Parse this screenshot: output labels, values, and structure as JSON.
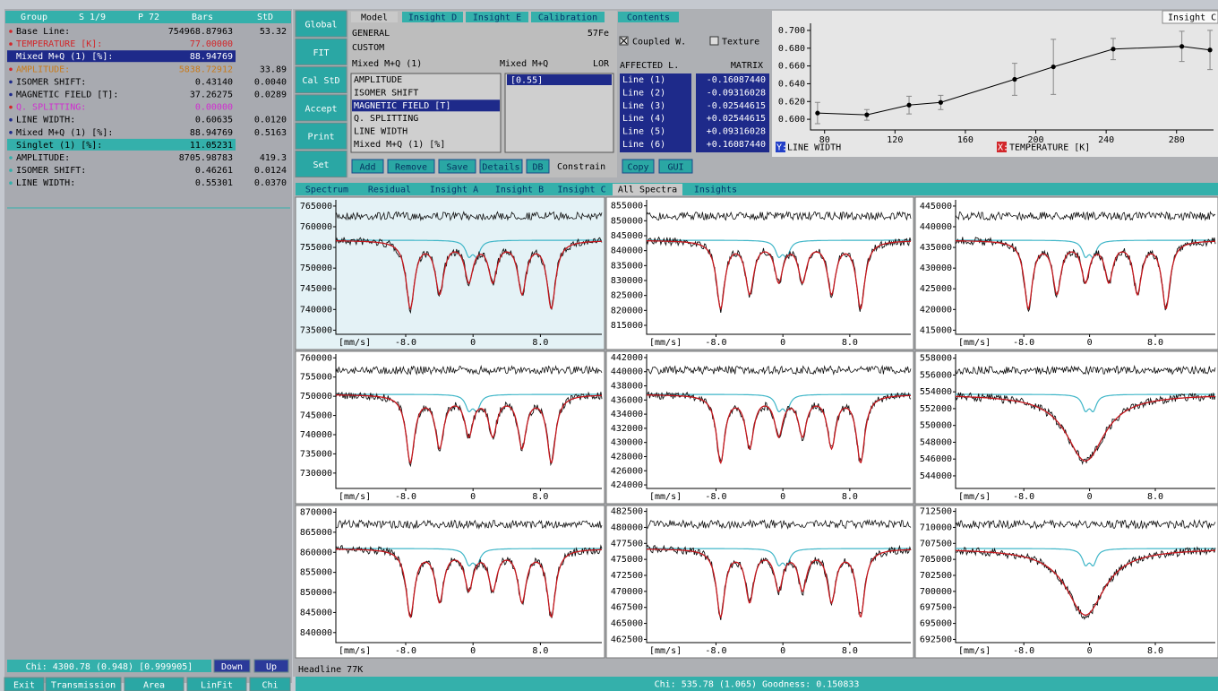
{
  "left_panel": {
    "headers": [
      "Group",
      "S 1/9",
      "P 72",
      "Bars",
      "StD"
    ],
    "rows": [
      {
        "label": "Base Line:",
        "value": "754968.87963",
        "std": "53.32"
      },
      {
        "label": "TEMPERATURE [K]:",
        "value": "77.00000"
      },
      {
        "label": "Mixed M+Q (1) [%]:",
        "value": "88.94769"
      },
      {
        "label": "AMPLITUDE:",
        "value": "5838.72912",
        "std": "33.89"
      },
      {
        "label": "ISOMER SHIFT:",
        "value": "0.43140",
        "std": "0.0040"
      },
      {
        "label": "MAGNETIC FIELD [T]:",
        "value": "37.26275",
        "std": "0.0289"
      },
      {
        "label": "Q. SPLITTING:",
        "value": "0.00000"
      },
      {
        "label": "LINE WIDTH:",
        "value": "0.60635",
        "std": "0.0120"
      },
      {
        "label": "Mixed M+Q (1) [%]:",
        "value": "88.94769",
        "std": "0.5163"
      },
      {
        "label": "Singlet (1) [%]:",
        "value": "11.05231"
      },
      {
        "label": "AMPLITUDE:",
        "value": "8705.98783",
        "std": "419.3"
      },
      {
        "label": "ISOMER SHIFT:",
        "value": "0.46261",
        "std": "0.0124"
      },
      {
        "label": "LINE WIDTH:",
        "value": "0.55301",
        "std": "0.0370"
      }
    ],
    "chi": "Chi: 4300.78 (0.948) [0.999905]",
    "chi_buttons": [
      "Down",
      "Up"
    ],
    "buttons": [
      "Exit",
      "Transmission",
      "Area",
      "LinFit",
      "Chi"
    ]
  },
  "side_buttons": [
    "Global",
    "FIT",
    "Cal StD",
    "Accept",
    "Print",
    "Set"
  ],
  "model_panel": {
    "tabs": [
      "Model",
      "Insight D",
      "Insight E",
      "Calibration",
      "Contents"
    ],
    "general": "GENERAL",
    "isotope": "57Fe",
    "custom": "CUSTOM",
    "model_name": "Mixed M+Q (1)",
    "model_type": "Mixed M+Q",
    "line_shape": "LOR",
    "parameters": [
      "AMPLITUDE",
      "ISOMER SHIFT",
      "MAGNETIC FIELD [T]",
      "Q. SPLITTING",
      "LINE WIDTH",
      "Mixed M+Q (1) [%]"
    ],
    "parameter_values": [
      "[0.55]"
    ],
    "buttons": [
      "Add",
      "Remove",
      "Save",
      "Details",
      "DB"
    ],
    "constrain": "Constrain"
  },
  "lines_panel": {
    "coupled": "Coupled W.",
    "texture": "Texture",
    "affected": "AFFECTED L.",
    "matrix": "MATRIX",
    "lines": [
      {
        "name": "Line (1)",
        "value": "-0.16087440"
      },
      {
        "name": "Line (2)",
        "value": "-0.09316028"
      },
      {
        "name": "Line (3)",
        "value": "-0.02544615"
      },
      {
        "name": "Line (4)",
        "value": "+0.02544615"
      },
      {
        "name": "Line (5)",
        "value": "+0.09316028"
      },
      {
        "name": "Line (6)",
        "value": "+0.16087440"
      }
    ],
    "buttons": [
      "Copy",
      "GUI"
    ]
  },
  "insight_chart": {
    "type": "line",
    "tab": "Insight C",
    "y_axis_tag": "Y:",
    "y_label": "LINE WIDTH",
    "x_axis_tag": "X:",
    "x_label": "TEMPERATURE [K]",
    "x": [
      76,
      104,
      128,
      146,
      188,
      210,
      244,
      283,
      299
    ],
    "values": [
      0.607,
      0.605,
      0.616,
      0.619,
      0.645,
      0.659,
      0.679,
      0.682,
      0.678
    ],
    "errors": [
      0.012,
      0.006,
      0.01,
      0.008,
      0.018,
      0.031,
      0.012,
      0.017,
      0.022
    ],
    "color": "#000000",
    "xlim": [
      72,
      301
    ],
    "ylim": [
      0.588,
      0.708
    ],
    "xticks": [
      80,
      120,
      160,
      200,
      240,
      280
    ],
    "yticks": [
      {
        "value": 0.6,
        "label": "0.600"
      },
      {
        "value": 0.62,
        "label": "0.620"
      },
      {
        "value": 0.64,
        "label": "0.640"
      },
      {
        "value": 0.66,
        "label": "0.660"
      },
      {
        "value": 0.68,
        "label": "0.680"
      },
      {
        "value": 0.7,
        "label": "0.700"
      }
    ]
  },
  "spectra_tabs": [
    "Spectrum",
    "Residual",
    "Insight A",
    "Insight B",
    "Insight C",
    "All Spectra",
    "Insights"
  ],
  "spectra": [
    {
      "x_unit": "[mm/s]",
      "xlim": [
        -16.3,
        15.3
      ],
      "xticks": [
        {
          "value": -8,
          "label": "-8.0"
        },
        0,
        {
          "value": 8,
          "label": "8.0"
        }
      ],
      "ylim": [
        734000,
        766500
      ],
      "yticks": [
        735000,
        740000,
        745000,
        750000,
        755000,
        760000,
        765000
      ]
    },
    {
      "x_unit": "[mm/s]",
      "xlim": [
        -16.3,
        15.3
      ],
      "xticks": [
        {
          "value": -8,
          "label": "-8.0"
        },
        0,
        {
          "value": 8,
          "label": "8.0"
        }
      ],
      "ylim": [
        812000,
        857000
      ],
      "yticks": [
        815000,
        820000,
        825000,
        830000,
        835000,
        840000,
        845000,
        850000,
        855000
      ]
    },
    {
      "x_unit": "[mm/s]",
      "xlim": [
        -16.3,
        15.3
      ],
      "xticks": [
        {
          "value": -8,
          "label": "-8.0"
        },
        0,
        {
          "value": 8,
          "label": "8.0"
        }
      ],
      "ylim": [
        414000,
        446500
      ],
      "yticks": [
        415000,
        420000,
        425000,
        430000,
        435000,
        440000,
        445000
      ]
    },
    {
      "x_unit": "[mm/s]",
      "xlim": [
        -16.3,
        15.3
      ],
      "xticks": [
        {
          "value": -8,
          "label": "-8.0"
        },
        0,
        {
          "value": 8,
          "label": "8.0"
        }
      ],
      "ylim": [
        726000,
        761000
      ],
      "yticks": [
        730000,
        735000,
        740000,
        745000,
        750000,
        755000,
        760000
      ]
    },
    {
      "x_unit": "[mm/s]",
      "xlim": [
        -16.3,
        15.3
      ],
      "xticks": [
        {
          "value": -8,
          "label": "-8.0"
        },
        0,
        {
          "value": 8,
          "label": "8.0"
        }
      ],
      "ylim": [
        423500,
        442500
      ],
      "yticks": [
        424000,
        426000,
        428000,
        430000,
        432000,
        434000,
        436000,
        438000,
        440000,
        442000
      ]
    },
    {
      "x_unit": "[mm/s]",
      "xlim": [
        -16.3,
        15.3
      ],
      "xticks": [
        {
          "value": -8,
          "label": "-8.0"
        },
        0,
        {
          "value": 8,
          "label": "8.0"
        }
      ],
      "ylim": [
        542500,
        558500
      ],
      "yticks": [
        544000,
        546000,
        548000,
        550000,
        552000,
        554000,
        556000,
        558000
      ]
    },
    {
      "x_unit": "[mm/s]",
      "xlim": [
        -16.3,
        15.3
      ],
      "xticks": [
        {
          "value": -8,
          "label": "-8.0"
        },
        0,
        {
          "value": 8,
          "label": "8.0"
        }
      ],
      "ylim": [
        837500,
        871000
      ],
      "yticks": [
        840000,
        845000,
        850000,
        855000,
        860000,
        865000,
        870000
      ]
    },
    {
      "x_unit": "[mm/s]",
      "xlim": [
        -16.3,
        15.3
      ],
      "xticks": [
        {
          "value": -8,
          "label": "-8.0"
        },
        0,
        {
          "value": 8,
          "label": "8.0"
        }
      ],
      "ylim": [
        462000,
        483000
      ],
      "yticks": [
        462500,
        465000,
        467500,
        470000,
        472500,
        475000,
        477500,
        480000,
        482500
      ]
    },
    {
      "x_unit": "[mm/s]",
      "xlim": [
        -16.3,
        15.3
      ],
      "xticks": [
        {
          "value": -8,
          "label": "-8.0"
        },
        0,
        {
          "value": 8,
          "label": "8.0"
        }
      ],
      "ylim": [
        692000,
        713000
      ],
      "yticks": [
        692500,
        695000,
        697500,
        700000,
        702500,
        705000,
        707500,
        710000,
        712500
      ]
    }
  ],
  "headline": "Headline 77K",
  "status": "Chi: 535.78 (1.065) Goodness: 0.150833"
}
